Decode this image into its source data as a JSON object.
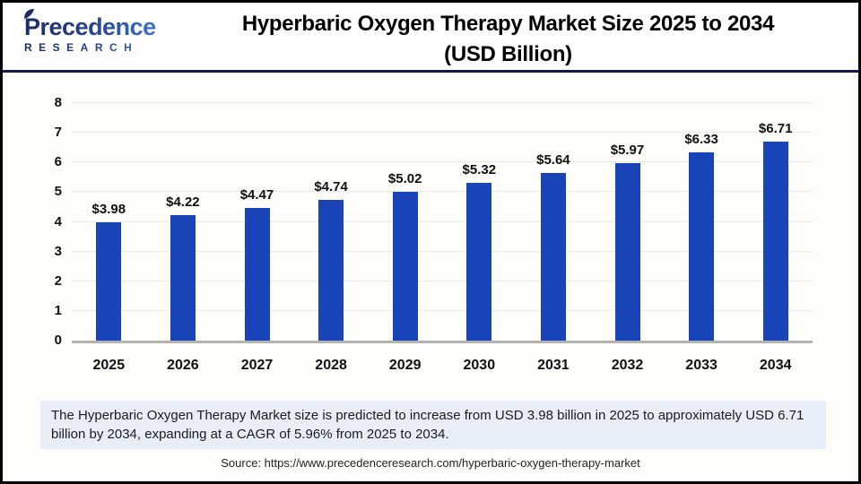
{
  "header": {
    "logo": {
      "line1": "Precedence",
      "line2": "RESEARCH"
    },
    "title_line1": "Hyperbaric Oxygen Therapy Market Size 2025 to 2034",
    "title_line2": "(USD Billion)"
  },
  "chart_data": {
    "type": "bar",
    "title": "Hyperbaric Oxygen Therapy Market Size 2025 to 2034 (USD Billion)",
    "xlabel": "",
    "ylabel": "",
    "categories": [
      "2025",
      "2026",
      "2027",
      "2028",
      "2029",
      "2030",
      "2031",
      "2032",
      "2033",
      "2034"
    ],
    "values": [
      3.98,
      4.22,
      4.47,
      4.74,
      5.02,
      5.32,
      5.64,
      5.97,
      6.33,
      6.71
    ],
    "value_labels": [
      "$3.98",
      "$4.22",
      "$4.47",
      "$4.74",
      "$5.02",
      "$5.32",
      "$5.64",
      "$5.97",
      "$6.33",
      "$6.71"
    ],
    "ylim": [
      0,
      8
    ],
    "yticks": [
      0,
      1,
      2,
      3,
      4,
      5,
      6,
      7,
      8
    ],
    "grid": true,
    "legend": "none",
    "bar_color": "#1844B8"
  },
  "note": {
    "text": "The Hyperbaric Oxygen Therapy Market size is predicted to increase from USD 3.98 billion in 2025 to approximately USD 6.71 billion by 2034, expanding at a CAGR of 5.96% from 2025 to 2034."
  },
  "source": {
    "text": "Source: https://www.precedenceresearch.com/hyperbaric-oxygen-therapy-market"
  },
  "colors": {
    "bar": "#1844B8",
    "header_divider": "#131B4D",
    "note_background": "#E7EEF8",
    "axis_baseline": "#B3B3B3",
    "gridline": "#EAEAEA",
    "logo_navy": "#1E2A66",
    "logo_blue": "#3D7BD8"
  }
}
